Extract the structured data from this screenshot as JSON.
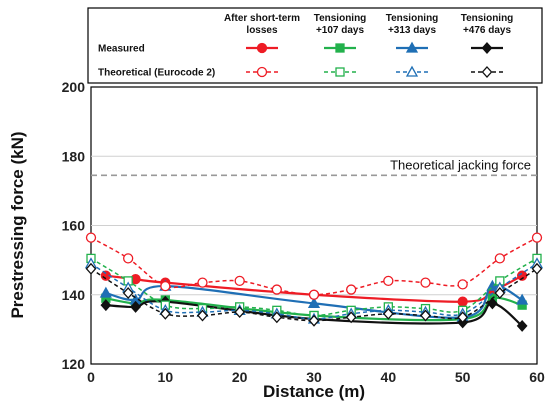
{
  "chart_data": {
    "type": "line",
    "xlabel": "Distance (m)",
    "ylabel": "Prestressing force (kN)",
    "xlim": [
      0,
      60
    ],
    "ylim": [
      120,
      200
    ],
    "xticks": [
      "0",
      "10",
      "20",
      "30",
      "40",
      "50",
      "60"
    ],
    "yticks": [
      "120",
      "140",
      "160",
      "180",
      "200"
    ],
    "grid": "y-major",
    "legend_placement": "top",
    "legend_rows": [
      "Measured",
      "Theoretical (Eurocode 2)"
    ],
    "legend_columns": [
      [
        "After short-term",
        "losses"
      ],
      [
        "Tensioning",
        "+107 days"
      ],
      [
        "Tensioning",
        "+313 days"
      ],
      [
        "Tensioning",
        "+476 days"
      ]
    ],
    "reference_line": {
      "label": "Theoretical jacking force",
      "value": 174.5,
      "color": "#999999"
    },
    "series": [
      {
        "key": "m0",
        "group": "Measured",
        "column": 0,
        "color": "#ee1c25",
        "marker": "circle",
        "filled": true,
        "dashed": false,
        "x": [
          2,
          6,
          10,
          30,
          50,
          54,
          58
        ],
        "y": [
          145.5,
          144.5,
          143.5,
          140,
          138,
          141,
          145.5
        ]
      },
      {
        "key": "m107",
        "group": "Measured",
        "column": 1,
        "color": "#22b14c",
        "marker": "square",
        "filled": true,
        "dashed": false,
        "x": [
          2,
          6,
          10,
          30,
          50,
          54,
          58
        ],
        "y": [
          139,
          137.5,
          138.5,
          134,
          133,
          139,
          137
        ]
      },
      {
        "key": "m313",
        "group": "Measured",
        "column": 2,
        "color": "#1f6fb5",
        "marker": "triangle",
        "filled": true,
        "dashed": false,
        "x": [
          2,
          6,
          10,
          30,
          50,
          54,
          58
        ],
        "y": [
          140.5,
          138.5,
          142.5,
          137.5,
          133.5,
          142.5,
          138.5
        ]
      },
      {
        "key": "m476",
        "group": "Measured",
        "column": 3,
        "color": "#111111",
        "marker": "diamond",
        "filled": true,
        "dashed": false,
        "x": [
          2,
          6,
          10,
          30,
          50,
          54,
          58
        ],
        "y": [
          137,
          136.5,
          138,
          133,
          132,
          137.5,
          131
        ]
      },
      {
        "key": "t0",
        "group": "Theoretical (Eurocode 2)",
        "column": 0,
        "color": "#ee1c25",
        "marker": "circle",
        "filled": false,
        "dashed": true,
        "x": [
          0,
          5,
          10,
          15,
          20,
          25,
          30,
          35,
          40,
          45,
          50,
          55,
          60
        ],
        "y": [
          156.5,
          150.5,
          142.5,
          143.5,
          144,
          141.5,
          140,
          141.5,
          144,
          143.5,
          143,
          150.5,
          156.5
        ]
      },
      {
        "key": "t107",
        "group": "Theoretical (Eurocode 2)",
        "column": 1,
        "color": "#22b14c",
        "marker": "square",
        "filled": false,
        "dashed": true,
        "x": [
          0,
          5,
          10,
          15,
          20,
          25,
          30,
          35,
          40,
          45,
          50,
          55,
          60
        ],
        "y": [
          150.5,
          144,
          137,
          136,
          136.5,
          135.5,
          134,
          135.5,
          136.5,
          136,
          135.5,
          144,
          150.5
        ]
      },
      {
        "key": "t313",
        "group": "Theoretical (Eurocode 2)",
        "column": 2,
        "color": "#1f6fb5",
        "marker": "triangle",
        "filled": false,
        "dashed": true,
        "x": [
          0,
          5,
          10,
          15,
          20,
          25,
          30,
          35,
          40,
          45,
          50,
          55,
          60
        ],
        "y": [
          149,
          142,
          135.5,
          135,
          135.5,
          134.5,
          133,
          134.5,
          135.5,
          135,
          134.5,
          142,
          149
        ]
      },
      {
        "key": "t476",
        "group": "Theoretical (Eurocode 2)",
        "column": 3,
        "color": "#111111",
        "marker": "diamond",
        "filled": false,
        "dashed": true,
        "x": [
          0,
          5,
          10,
          15,
          20,
          25,
          30,
          35,
          40,
          45,
          50,
          55,
          60
        ],
        "y": [
          147.5,
          140.5,
          134.5,
          134,
          135,
          133.5,
          132.5,
          133.5,
          134.5,
          134,
          133.5,
          140.5,
          147.5
        ]
      }
    ]
  }
}
